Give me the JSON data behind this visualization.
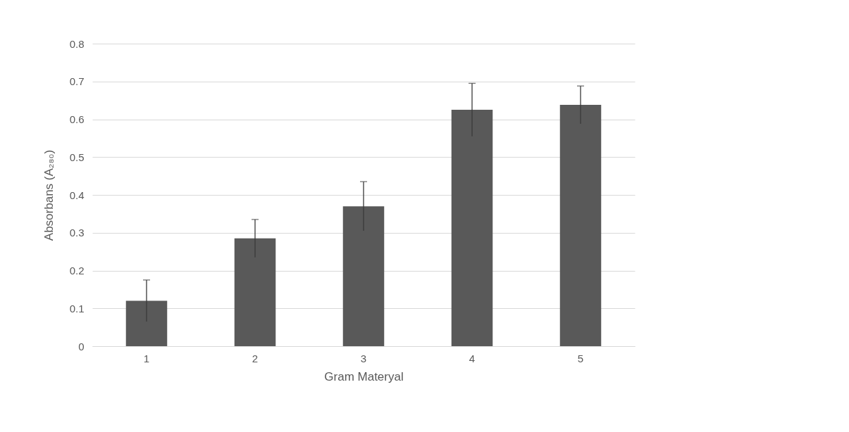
{
  "chart_data": {
    "type": "bar",
    "xlabel": "Gram Materyal",
    "ylabel": "Absorbans (A₂₈₀)",
    "categories": [
      "1",
      "2",
      "3",
      "4",
      "5"
    ],
    "values": [
      0.12,
      0.285,
      0.37,
      0.625,
      0.638
    ],
    "errors": [
      0.055,
      0.05,
      0.065,
      0.07,
      0.05
    ],
    "color": "#595959",
    "ylim": [
      0,
      0.8
    ],
    "yticks": [
      {
        "value": 0,
        "label": "0"
      },
      0.1,
      0.2,
      0.3,
      0.4,
      0.5,
      0.6,
      0.7,
      0.8
    ],
    "grid": "y"
  }
}
